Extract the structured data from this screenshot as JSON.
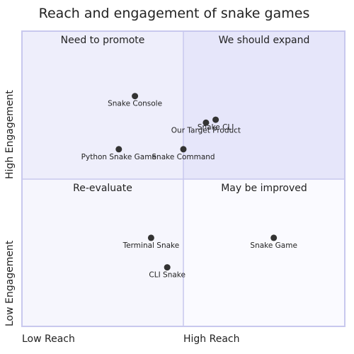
{
  "chart_data": {
    "type": "scatter",
    "title": "Reach and engagement of snake games",
    "x_axis": {
      "low": "Low Reach",
      "high": "High Reach",
      "range": [
        0,
        1
      ]
    },
    "y_axis": {
      "low": "Low Engagement",
      "high": "High Engagement",
      "range": [
        0,
        1
      ]
    },
    "quadrants": {
      "top_left": "Need to promote",
      "top_right": "We should expand",
      "bottom_left": "Re-evaluate",
      "bottom_right": "May be improved"
    },
    "colors": {
      "top_left": "#eeeefb",
      "top_right": "#e6e6fa",
      "bottom_left": "#f6f6fd",
      "bottom_right": "#fafaff",
      "border": "#c8c8ee",
      "point": "#333333"
    },
    "points": [
      {
        "label": "Snake Console",
        "x": 0.35,
        "y": 0.78
      },
      {
        "label": "Our Target Product",
        "x": 0.57,
        "y": 0.69
      },
      {
        "label": "Snake CLI",
        "x": 0.6,
        "y": 0.7
      },
      {
        "label": "Python Snake Game",
        "x": 0.3,
        "y": 0.6
      },
      {
        "label": "Snake Command",
        "x": 0.5,
        "y": 0.6
      },
      {
        "label": "Terminal Snake",
        "x": 0.4,
        "y": 0.3
      },
      {
        "label": "Snake Game",
        "x": 0.78,
        "y": 0.3
      },
      {
        "label": "CLI Snake",
        "x": 0.45,
        "y": 0.2
      }
    ]
  }
}
